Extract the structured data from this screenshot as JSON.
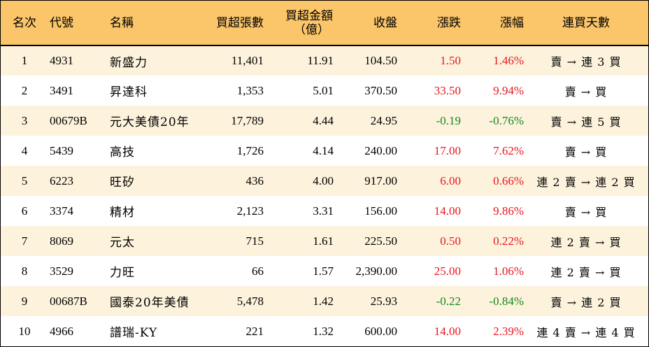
{
  "header": {
    "rank": "名次",
    "code": "代號",
    "name": "名稱",
    "buy_lots": "買超張數",
    "buy_amount_line1": "買超金額",
    "buy_amount_line2": "（億）",
    "close": "收盤",
    "change": "漲跌",
    "change_pct": "漲幅",
    "trend": "連買天數"
  },
  "colors": {
    "header_bg": "#fbc56a",
    "odd_row_bg": "#fdf3dd",
    "up": "#e8151e",
    "down": "#12881c"
  },
  "rows": [
    {
      "rank": "1",
      "code": "4931",
      "name": "新盛力",
      "buy_lots": "11,401",
      "buy_amount": "11.91",
      "close": "104.50",
      "change": "1.50",
      "change_pct": "1.46%",
      "trend": "賣 → 連 3 買",
      "dir": "up"
    },
    {
      "rank": "2",
      "code": "3491",
      "name": "昇達科",
      "buy_lots": "1,353",
      "buy_amount": "5.01",
      "close": "370.50",
      "change": "33.50",
      "change_pct": "9.94%",
      "trend": "賣 → 買",
      "dir": "up"
    },
    {
      "rank": "3",
      "code": "00679B",
      "name": "元大美債20年",
      "buy_lots": "17,789",
      "buy_amount": "4.44",
      "close": "24.95",
      "change": "-0.19",
      "change_pct": "-0.76%",
      "trend": "賣 → 連 5 買",
      "dir": "down"
    },
    {
      "rank": "4",
      "code": "5439",
      "name": "高技",
      "buy_lots": "1,726",
      "buy_amount": "4.14",
      "close": "240.00",
      "change": "17.00",
      "change_pct": "7.62%",
      "trend": "賣 → 買",
      "dir": "up"
    },
    {
      "rank": "5",
      "code": "6223",
      "name": "旺矽",
      "buy_lots": "436",
      "buy_amount": "4.00",
      "close": "917.00",
      "change": "6.00",
      "change_pct": "0.66%",
      "trend": "連 2 賣 → 連 2 買",
      "dir": "up"
    },
    {
      "rank": "6",
      "code": "3374",
      "name": "精材",
      "buy_lots": "2,123",
      "buy_amount": "3.31",
      "close": "156.00",
      "change": "14.00",
      "change_pct": "9.86%",
      "trend": "賣 → 買",
      "dir": "up"
    },
    {
      "rank": "7",
      "code": "8069",
      "name": "元太",
      "buy_lots": "715",
      "buy_amount": "1.61",
      "close": "225.50",
      "change": "0.50",
      "change_pct": "0.22%",
      "trend": "連 2 賣 → 買",
      "dir": "up"
    },
    {
      "rank": "8",
      "code": "3529",
      "name": "力旺",
      "buy_lots": "66",
      "buy_amount": "1.57",
      "close": "2,390.00",
      "change": "25.00",
      "change_pct": "1.06%",
      "trend": "連 2 賣 → 買",
      "dir": "up"
    },
    {
      "rank": "9",
      "code": "00687B",
      "name": "國泰20年美債",
      "buy_lots": "5,478",
      "buy_amount": "1.42",
      "close": "25.93",
      "change": "-0.22",
      "change_pct": "-0.84%",
      "trend": "賣 → 連 2 買",
      "dir": "down"
    },
    {
      "rank": "10",
      "code": "4966",
      "name": "譜瑞-KY",
      "buy_lots": "221",
      "buy_amount": "1.32",
      "close": "600.00",
      "change": "14.00",
      "change_pct": "2.39%",
      "trend": "連 4 賣 → 連 4 買",
      "dir": "up"
    }
  ]
}
